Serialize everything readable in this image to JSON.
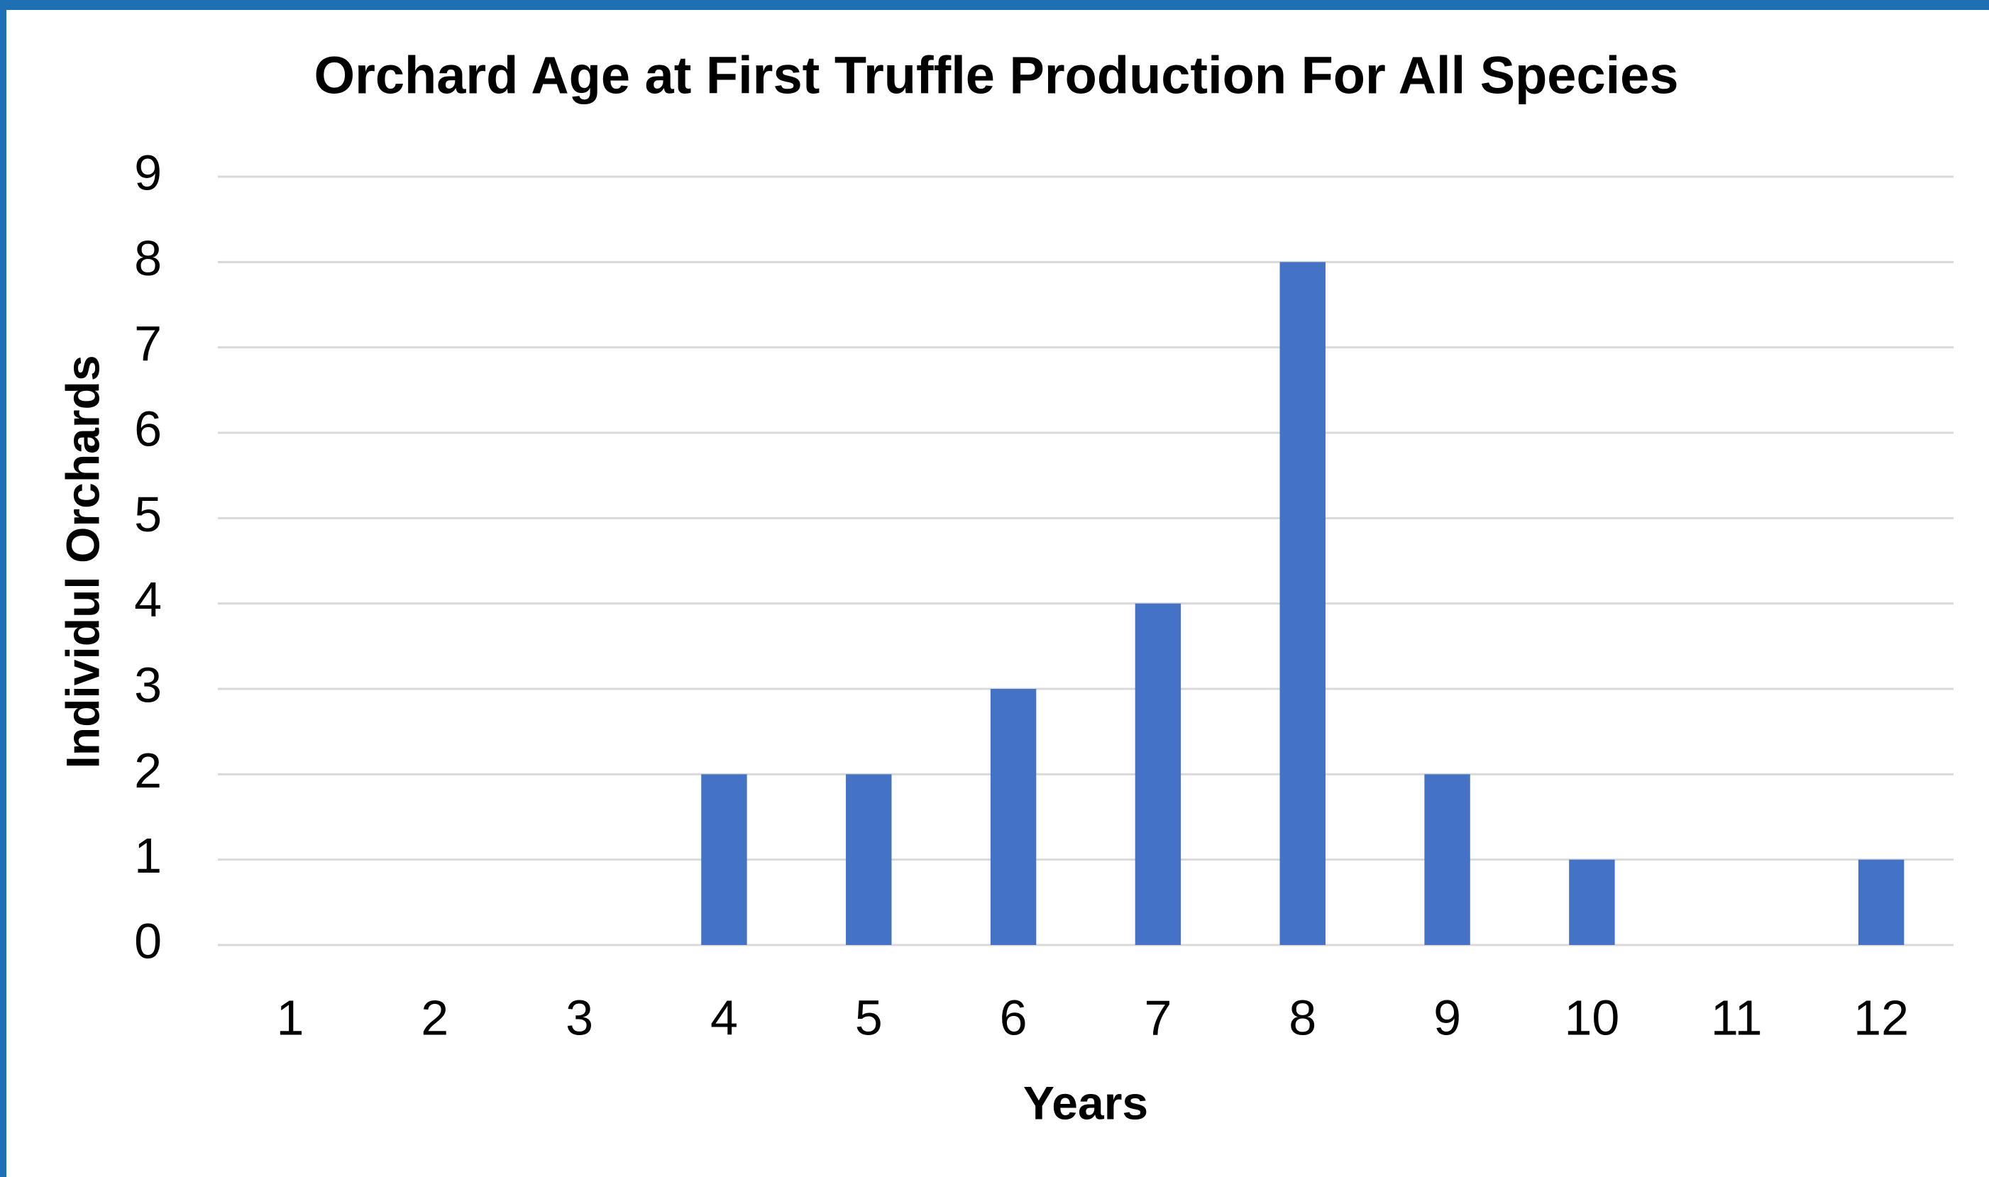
{
  "chart_data": {
    "type": "bar",
    "title": "Orchard Age at First Truffle Production For All Species",
    "x_label": "Years",
    "y_label": "Individul Orchards",
    "categories": [
      "1",
      "2",
      "3",
      "4",
      "5",
      "6",
      "7",
      "8",
      "9",
      "10",
      "11",
      "12"
    ],
    "values": [
      0,
      0,
      0,
      2,
      2,
      3,
      4,
      8,
      2,
      1,
      0,
      1
    ],
    "color": "#4472c4",
    "ylim": [
      0,
      9
    ],
    "yticks": [
      0,
      1,
      2,
      3,
      4,
      5,
      6,
      7,
      8,
      9
    ],
    "grid": true
  }
}
